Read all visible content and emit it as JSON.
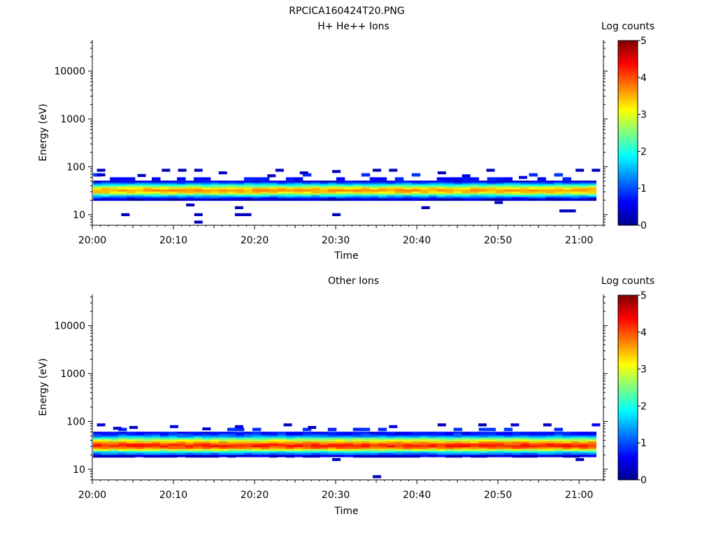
{
  "figure_title": "RPCICA160424T20.PNG",
  "chart_data": [
    {
      "type": "heatmap",
      "title": "H+ He++ Ions",
      "xlabel": "Time",
      "ylabel": "Energy (eV)",
      "yscale": "log",
      "ylim": [
        6,
        45000
      ],
      "y_ticks": [
        10,
        100,
        1000,
        10000
      ],
      "y_tick_labels": [
        "10",
        "100",
        "1000",
        "10000"
      ],
      "xlim": [
        "20:00",
        "21:03"
      ],
      "x_ticks": [
        "20:00",
        "20:10",
        "20:20",
        "20:30",
        "20:40",
        "20:50",
        "21:00"
      ],
      "colorbar": {
        "label": "Log counts",
        "range": [
          0,
          5
        ],
        "ticks": [
          "0",
          "1",
          "2",
          "3",
          "4",
          "5"
        ]
      },
      "band": {
        "description_energy_eV": [
          20,
          50
        ],
        "profile": [
          {
            "energy": 49,
            "log_counts": 0.5
          },
          {
            "energy": 45,
            "log_counts": 1.2
          },
          {
            "energy": 41,
            "log_counts": 2.0
          },
          {
            "energy": 38,
            "log_counts": 2.7
          },
          {
            "energy": 35,
            "log_counts": 3.3
          },
          {
            "energy": 32,
            "log_counts": 3.6
          },
          {
            "energy": 29,
            "log_counts": 3.3
          },
          {
            "energy": 27,
            "log_counts": 2.6
          },
          {
            "energy": 24.5,
            "log_counts": 1.7
          },
          {
            "energy": 22.5,
            "log_counts": 0.9
          },
          {
            "energy": 20.7,
            "log_counts": 0.3
          }
        ]
      },
      "sparse_points": [
        {
          "t": "20:01",
          "energy": 85,
          "log_counts": 0.3
        },
        {
          "t": "20:01",
          "energy": 68,
          "log_counts": 0.3
        },
        {
          "t": "20:04",
          "energy": 10,
          "log_counts": 0.3
        },
        {
          "t": "20:06",
          "energy": 66,
          "log_counts": 0.3
        },
        {
          "t": "20:09",
          "energy": 85,
          "log_counts": 0.3
        },
        {
          "t": "20:11",
          "energy": 85,
          "log_counts": 0.3
        },
        {
          "t": "20:12",
          "energy": 16,
          "log_counts": 0.3
        },
        {
          "t": "20:13",
          "energy": 85,
          "log_counts": 0.3
        },
        {
          "t": "20:13",
          "energy": 10,
          "log_counts": 0.3
        },
        {
          "t": "20:13",
          "energy": 7,
          "log_counts": 0.3
        },
        {
          "t": "20:16",
          "energy": 75,
          "log_counts": 0.3
        },
        {
          "t": "20:18",
          "energy": 14,
          "log_counts": 0.3
        },
        {
          "t": "20:18",
          "energy": 10,
          "log_counts": 0.3
        },
        {
          "t": "20:19",
          "energy": 10,
          "log_counts": 0.3
        },
        {
          "t": "20:22",
          "energy": 65,
          "log_counts": 0.3
        },
        {
          "t": "20:23",
          "energy": 85,
          "log_counts": 0.3
        },
        {
          "t": "20:26",
          "energy": 75,
          "log_counts": 0.3
        },
        {
          "t": "20:30",
          "energy": 80,
          "log_counts": 0.3
        },
        {
          "t": "20:30",
          "energy": 10,
          "log_counts": 0.3
        },
        {
          "t": "20:35",
          "energy": 85,
          "log_counts": 0.3
        },
        {
          "t": "20:37",
          "energy": 85,
          "log_counts": 0.3
        },
        {
          "t": "20:41",
          "energy": 14,
          "log_counts": 0.3
        },
        {
          "t": "20:43",
          "energy": 75,
          "log_counts": 0.3
        },
        {
          "t": "20:46",
          "energy": 65,
          "log_counts": 0.5
        },
        {
          "t": "20:49",
          "energy": 85,
          "log_counts": 0.3
        },
        {
          "t": "20:50",
          "energy": 18,
          "log_counts": 0.3
        },
        {
          "t": "20:53",
          "energy": 60,
          "log_counts": 0.5
        },
        {
          "t": "20:58",
          "energy": 12,
          "log_counts": 0.3
        },
        {
          "t": "20:59",
          "energy": 12,
          "log_counts": 0.3
        },
        {
          "t": "21:00",
          "energy": 85,
          "log_counts": 0.3
        },
        {
          "t": "21:02",
          "energy": 85,
          "log_counts": 0.3
        }
      ]
    },
    {
      "type": "heatmap",
      "title": "Other Ions",
      "xlabel": "Time",
      "ylabel": "Energy (eV)",
      "yscale": "log",
      "ylim": [
        6,
        45000
      ],
      "y_ticks": [
        10,
        100,
        1000,
        10000
      ],
      "y_tick_labels": [
        "10",
        "100",
        "1000",
        "10000"
      ],
      "xlim": [
        "20:00",
        "21:03"
      ],
      "x_ticks": [
        "20:00",
        "20:10",
        "20:20",
        "20:30",
        "20:40",
        "20:50",
        "21:00"
      ],
      "colorbar": {
        "label": "Log counts",
        "range": [
          0,
          5
        ],
        "ticks": [
          "0",
          "1",
          "2",
          "3",
          "4",
          "5"
        ]
      },
      "band": {
        "description_energy_eV": [
          18,
          60
        ],
        "profile": [
          {
            "energy": 58,
            "log_counts": 0.6
          },
          {
            "energy": 53,
            "log_counts": 0.9
          },
          {
            "energy": 48,
            "log_counts": 1.4
          },
          {
            "energy": 44,
            "log_counts": 2.2
          },
          {
            "energy": 40,
            "log_counts": 2.9
          },
          {
            "energy": 36,
            "log_counts": 3.6
          },
          {
            "energy": 33,
            "log_counts": 4.1
          },
          {
            "energy": 30,
            "log_counts": 4.2
          },
          {
            "energy": 27.5,
            "log_counts": 3.7
          },
          {
            "energy": 25,
            "log_counts": 2.8
          },
          {
            "energy": 23,
            "log_counts": 1.9
          },
          {
            "energy": 21,
            "log_counts": 1.2
          },
          {
            "energy": 19,
            "log_counts": 0.5
          }
        ]
      },
      "sparse_points": [
        {
          "t": "20:01",
          "energy": 85,
          "log_counts": 0.4
        },
        {
          "t": "20:03",
          "energy": 72,
          "log_counts": 0.4
        },
        {
          "t": "20:05",
          "energy": 75,
          "log_counts": 0.3
        },
        {
          "t": "20:10",
          "energy": 78,
          "log_counts": 0.5
        },
        {
          "t": "20:14",
          "energy": 70,
          "log_counts": 0.4
        },
        {
          "t": "20:18",
          "energy": 78,
          "log_counts": 0.5
        },
        {
          "t": "20:24",
          "energy": 85,
          "log_counts": 0.3
        },
        {
          "t": "20:27",
          "energy": 75,
          "log_counts": 0.3
        },
        {
          "t": "20:30",
          "energy": 16,
          "log_counts": 0.3
        },
        {
          "t": "20:35",
          "energy": 7,
          "log_counts": 0.3
        },
        {
          "t": "20:37",
          "energy": 78,
          "log_counts": 0.5
        },
        {
          "t": "20:43",
          "energy": 85,
          "log_counts": 0.3
        },
        {
          "t": "20:48",
          "energy": 85,
          "log_counts": 0.3
        },
        {
          "t": "20:52",
          "energy": 85,
          "log_counts": 0.4
        },
        {
          "t": "20:56",
          "energy": 85,
          "log_counts": 0.3
        },
        {
          "t": "21:00",
          "energy": 16,
          "log_counts": 0.3
        },
        {
          "t": "21:02",
          "energy": 85,
          "log_counts": 0.6
        }
      ]
    }
  ]
}
